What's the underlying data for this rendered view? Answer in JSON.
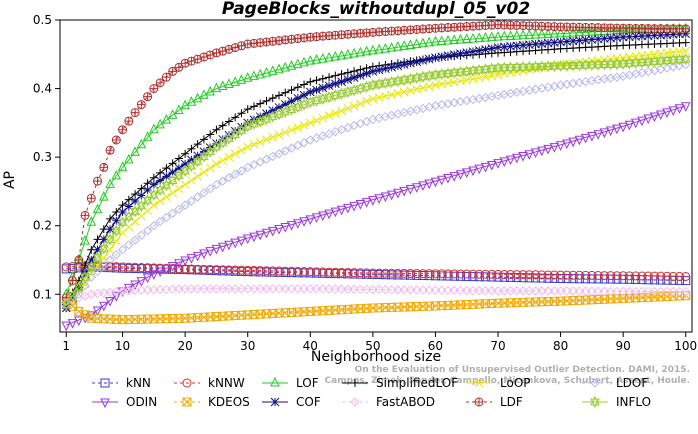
{
  "chart_data": {
    "type": "line",
    "title": "PageBlocks_withoutdupl_05_v02",
    "xlabel": "Neighborhood size",
    "ylabel": "AP",
    "xlim": [
      0,
      101
    ],
    "ylim": [
      0.045,
      0.5
    ],
    "x_ticks": [
      1,
      10,
      20,
      30,
      40,
      50,
      60,
      70,
      80,
      90,
      100
    ],
    "y_ticks": [
      0.1,
      0.2,
      0.3,
      0.4,
      0.5
    ],
    "grid": false,
    "legend_position": "bottom",
    "credit": "Campos, Zimek, Sander, Campello, Micenkova, Schubert, Assent, Houle. On the Evaluation of Unsupervised Outlier Detection. DAMI, 2015.",
    "series": [
      {
        "name": "kNN",
        "color": "#3a3ad8",
        "marker": "square",
        "dash": "3,3",
        "x": [
          1,
          5,
          10,
          20,
          30,
          40,
          50,
          60,
          70,
          80,
          90,
          100
        ],
        "y": [
          0.137,
          0.14,
          0.138,
          0.136,
          0.133,
          0.131,
          0.129,
          0.127,
          0.125,
          0.123,
          0.122,
          0.12
        ]
      },
      {
        "name": "kNNW",
        "color": "#d03030",
        "marker": "circle",
        "dash": "3,3",
        "x": [
          1,
          5,
          10,
          20,
          30,
          40,
          50,
          60,
          70,
          80,
          90,
          100
        ],
        "y": [
          0.14,
          0.142,
          0.14,
          0.137,
          0.135,
          0.133,
          0.131,
          0.13,
          0.129,
          0.128,
          0.127,
          0.126
        ]
      },
      {
        "name": "LOF",
        "color": "#22cc22",
        "marker": "triangle",
        "dash": "",
        "x": [
          1,
          3,
          5,
          8,
          10,
          15,
          20,
          25,
          30,
          40,
          50,
          60,
          70,
          80,
          90,
          100
        ],
        "y": [
          0.1,
          0.15,
          0.205,
          0.26,
          0.285,
          0.34,
          0.375,
          0.4,
          0.415,
          0.44,
          0.455,
          0.468,
          0.475,
          0.48,
          0.485,
          0.487
        ]
      },
      {
        "name": "SimplifiedLOF",
        "color": "#000000",
        "marker": "plus",
        "dash": "",
        "x": [
          1,
          3,
          5,
          8,
          10,
          15,
          20,
          25,
          30,
          40,
          50,
          60,
          70,
          80,
          90,
          100
        ],
        "y": [
          0.085,
          0.12,
          0.165,
          0.21,
          0.23,
          0.27,
          0.305,
          0.34,
          0.37,
          0.41,
          0.432,
          0.445,
          0.452,
          0.458,
          0.463,
          0.467
        ]
      },
      {
        "name": "LoOP",
        "color": "#e8e800",
        "marker": "x",
        "dash": "",
        "x": [
          1,
          3,
          5,
          8,
          10,
          15,
          20,
          25,
          30,
          40,
          50,
          60,
          70,
          80,
          90,
          100
        ],
        "y": [
          0.08,
          0.1,
          0.13,
          0.165,
          0.19,
          0.23,
          0.26,
          0.29,
          0.315,
          0.35,
          0.385,
          0.405,
          0.42,
          0.435,
          0.445,
          0.455
        ]
      },
      {
        "name": "LDOF",
        "color": "#b8b8ec",
        "marker": "diamond",
        "dash": "3,3",
        "x": [
          1,
          3,
          5,
          8,
          10,
          15,
          20,
          25,
          30,
          40,
          50,
          60,
          70,
          80,
          90,
          100
        ],
        "y": [
          0.08,
          0.1,
          0.125,
          0.15,
          0.165,
          0.2,
          0.23,
          0.26,
          0.285,
          0.325,
          0.355,
          0.375,
          0.39,
          0.405,
          0.418,
          0.435
        ]
      },
      {
        "name": "ODIN",
        "color": "#9a3ad8",
        "marker": "invtriangle",
        "dash": "",
        "x": [
          1,
          5,
          10,
          15,
          20,
          25,
          30,
          40,
          50,
          60,
          70,
          80,
          90,
          100
        ],
        "y": [
          0.055,
          0.07,
          0.105,
          0.13,
          0.15,
          0.167,
          0.182,
          0.21,
          0.238,
          0.265,
          0.292,
          0.318,
          0.345,
          0.375
        ]
      },
      {
        "name": "KDEOS",
        "color": "#f0a800",
        "marker": "boxx",
        "dash": "3,3",
        "x": [
          1,
          3,
          5,
          10,
          20,
          30,
          40,
          50,
          60,
          70,
          80,
          90,
          100
        ],
        "y": [
          0.09,
          0.075,
          0.065,
          0.063,
          0.065,
          0.07,
          0.075,
          0.08,
          0.083,
          0.087,
          0.09,
          0.094,
          0.098
        ]
      },
      {
        "name": "COF",
        "color": "#101080",
        "marker": "asterisk",
        "dash": "",
        "x": [
          1,
          3,
          5,
          8,
          10,
          15,
          20,
          25,
          30,
          40,
          50,
          60,
          70,
          80,
          90,
          100
        ],
        "y": [
          0.08,
          0.11,
          0.15,
          0.195,
          0.22,
          0.26,
          0.29,
          0.32,
          0.35,
          0.395,
          0.425,
          0.445,
          0.46,
          0.468,
          0.475,
          0.48
        ]
      },
      {
        "name": "FastABOD",
        "color": "#f0b8f0",
        "marker": "diamond",
        "dash": "3,3",
        "x": [
          1,
          5,
          10,
          20,
          30,
          40,
          50,
          60,
          70,
          80,
          90,
          100
        ],
        "y": [
          0.09,
          0.1,
          0.105,
          0.108,
          0.108,
          0.108,
          0.107,
          0.106,
          0.105,
          0.105,
          0.104,
          0.104
        ]
      },
      {
        "name": "LDF",
        "color": "#b03030",
        "marker": "circleplus",
        "dash": "3,3",
        "x": [
          1,
          2,
          3,
          4,
          5,
          6,
          7,
          8,
          10,
          12,
          15,
          18,
          20,
          25,
          30,
          40,
          50,
          60,
          70,
          80,
          90,
          100
        ],
        "y": [
          0.095,
          0.12,
          0.15,
          0.215,
          0.24,
          0.265,
          0.285,
          0.31,
          0.34,
          0.365,
          0.4,
          0.425,
          0.437,
          0.452,
          0.465,
          0.475,
          0.482,
          0.488,
          0.493,
          0.49,
          0.488,
          0.487
        ]
      },
      {
        "name": "INFLO",
        "color": "#9acd32",
        "marker": "hourglass",
        "dash": "",
        "x": [
          1,
          3,
          5,
          8,
          10,
          15,
          20,
          25,
          30,
          40,
          50,
          60,
          70,
          80,
          90,
          100
        ],
        "y": [
          0.085,
          0.11,
          0.14,
          0.18,
          0.205,
          0.245,
          0.28,
          0.315,
          0.345,
          0.38,
          0.405,
          0.42,
          0.43,
          0.433,
          0.436,
          0.443
        ]
      }
    ],
    "legend_layout": [
      [
        "kNN",
        "kNNW",
        "LOF",
        "SimplifiedLOF",
        "LoOP",
        "LDOF"
      ],
      [
        "ODIN",
        "KDEOS",
        "COF",
        "FastABOD",
        "LDF",
        "INFLO"
      ]
    ]
  }
}
